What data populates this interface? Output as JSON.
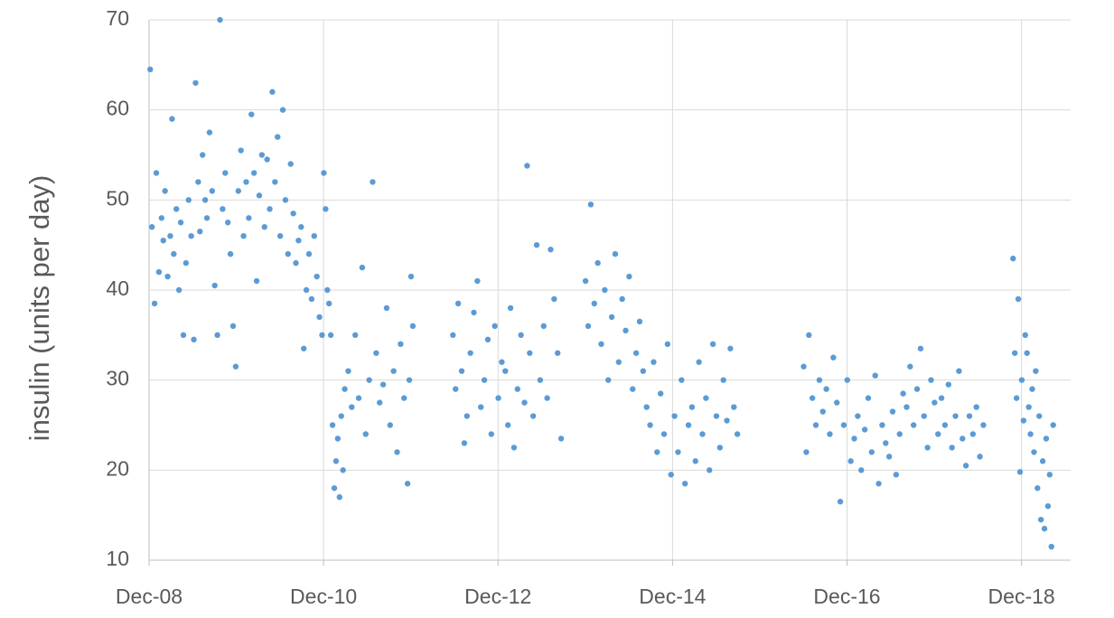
{
  "chart_data": {
    "type": "scatter",
    "y_label": "insulin (units per day)",
    "color": "#5b9bd5",
    "grid": true,
    "xlim": [
      2008.917,
      2019.48
    ],
    "xticks": [
      {
        "value": 2008.917,
        "label": "Dec-08"
      },
      {
        "value": 2010.917,
        "label": "Dec-10"
      },
      {
        "value": 2012.917,
        "label": "Dec-12"
      },
      {
        "value": 2014.917,
        "label": "Dec-14"
      },
      {
        "value": 2016.917,
        "label": "Dec-16"
      },
      {
        "value": 2018.917,
        "label": "Dec-18"
      }
    ],
    "ylim": [
      10,
      70
    ],
    "yticks": [
      10,
      20,
      30,
      40,
      50,
      60,
      70
    ],
    "x": [
      2008.93,
      2008.95,
      2008.98,
      2009.0,
      2009.03,
      2009.06,
      2009.08,
      2009.1,
      2009.13,
      2009.16,
      2009.18,
      2009.2,
      2009.23,
      2009.26,
      2009.28,
      2009.31,
      2009.34,
      2009.37,
      2009.4,
      2009.43,
      2009.45,
      2009.48,
      2009.5,
      2009.53,
      2009.56,
      2009.58,
      2009.61,
      2009.64,
      2009.67,
      2009.7,
      2009.73,
      2009.76,
      2009.79,
      2009.82,
      2009.85,
      2009.88,
      2009.91,
      2009.94,
      2009.97,
      2010.0,
      2010.03,
      2010.06,
      2010.09,
      2010.12,
      2010.15,
      2010.18,
      2010.21,
      2010.24,
      2010.27,
      2010.3,
      2010.33,
      2010.36,
      2010.39,
      2010.42,
      2010.45,
      2010.48,
      2010.51,
      2010.54,
      2010.57,
      2010.6,
      2010.63,
      2010.66,
      2010.69,
      2010.72,
      2010.75,
      2010.78,
      2010.81,
      2010.84,
      2010.87,
      2010.9,
      2010.92,
      2010.94,
      2010.96,
      2010.98,
      2011.0,
      2011.02,
      2011.04,
      2011.06,
      2011.08,
      2011.1,
      2011.12,
      2011.14,
      2011.16,
      2011.2,
      2011.24,
      2011.28,
      2011.32,
      2011.36,
      2011.4,
      2011.44,
      2011.48,
      2011.52,
      2011.56,
      2011.6,
      2011.64,
      2011.68,
      2011.72,
      2011.76,
      2011.8,
      2011.84,
      2011.88,
      2011.9,
      2011.92,
      2011.94,
      2012.4,
      2012.43,
      2012.46,
      2012.5,
      2012.53,
      2012.56,
      2012.6,
      2012.64,
      2012.68,
      2012.72,
      2012.76,
      2012.8,
      2012.84,
      2012.88,
      2012.92,
      2012.96,
      2013.0,
      2013.03,
      2013.06,
      2013.1,
      2013.14,
      2013.18,
      2013.22,
      2013.25,
      2013.28,
      2013.32,
      2013.36,
      2013.4,
      2013.44,
      2013.48,
      2013.52,
      2013.56,
      2013.6,
      2013.64,
      2013.92,
      2013.95,
      2013.98,
      2014.02,
      2014.06,
      2014.1,
      2014.14,
      2014.18,
      2014.22,
      2014.26,
      2014.3,
      2014.34,
      2014.38,
      2014.42,
      2014.46,
      2014.5,
      2014.54,
      2014.58,
      2014.62,
      2014.66,
      2014.7,
      2014.74,
      2014.78,
      2014.82,
      2014.86,
      2014.9,
      2014.94,
      2014.98,
      2015.02,
      2015.06,
      2015.1,
      2015.14,
      2015.18,
      2015.22,
      2015.26,
      2015.3,
      2015.34,
      2015.38,
      2015.42,
      2015.46,
      2015.5,
      2015.54,
      2015.58,
      2015.62,
      2015.66,
      2016.42,
      2016.45,
      2016.48,
      2016.52,
      2016.56,
      2016.6,
      2016.64,
      2016.68,
      2016.72,
      2016.76,
      2016.8,
      2016.84,
      2016.88,
      2016.92,
      2016.96,
      2017.0,
      2017.04,
      2017.08,
      2017.12,
      2017.16,
      2017.2,
      2017.24,
      2017.28,
      2017.32,
      2017.36,
      2017.4,
      2017.44,
      2017.48,
      2017.52,
      2017.56,
      2017.6,
      2017.64,
      2017.68,
      2017.72,
      2017.76,
      2017.8,
      2017.84,
      2017.88,
      2017.92,
      2017.96,
      2018.0,
      2018.04,
      2018.08,
      2018.12,
      2018.16,
      2018.2,
      2018.24,
      2018.28,
      2018.32,
      2018.36,
      2018.4,
      2018.44,
      2018.48,
      2018.82,
      2018.84,
      2018.86,
      2018.88,
      2018.9,
      2018.92,
      2018.94,
      2018.96,
      2018.98,
      2019.0,
      2019.02,
      2019.04,
      2019.06,
      2019.08,
      2019.1,
      2019.12,
      2019.14,
      2019.16,
      2019.18,
      2019.2,
      2019.22,
      2019.24,
      2019.26,
      2019.28
    ],
    "values": [
      64.5,
      47,
      38.5,
      53,
      42,
      48,
      45.5,
      51,
      41.5,
      46,
      59,
      44,
      49,
      40,
      47.5,
      35,
      43,
      50,
      46,
      34.5,
      63,
      52,
      46.5,
      55,
      50,
      48,
      57.5,
      51,
      40.5,
      35,
      70,
      49,
      53,
      47.5,
      44,
      36,
      31.5,
      51,
      55.5,
      46,
      52,
      48,
      59.5,
      53,
      41,
      50.5,
      55,
      47,
      54.5,
      49,
      62,
      52,
      57,
      46,
      60,
      50,
      44,
      54,
      48.5,
      43,
      45.5,
      47,
      33.5,
      40,
      44,
      39,
      46,
      41.5,
      37,
      35,
      53,
      49,
      40,
      38.5,
      35,
      25,
      18,
      21,
      23.5,
      17,
      26,
      20,
      29,
      31,
      27,
      35,
      28,
      42.5,
      24,
      30,
      52,
      33,
      27.5,
      29.5,
      38,
      25,
      31,
      22,
      34,
      28,
      18.5,
      30,
      41.5,
      36,
      35,
      29,
      38.5,
      31,
      23,
      26,
      33,
      37.5,
      41,
      27,
      30,
      34.5,
      24,
      36,
      28,
      32,
      31,
      25,
      38,
      22.5,
      29,
      35,
      27.5,
      53.8,
      33,
      26,
      45,
      30,
      36,
      28,
      44.5,
      39,
      33,
      23.5,
      41,
      36,
      49.5,
      38.5,
      43,
      34,
      40,
      30,
      37,
      44,
      32,
      39,
      35.5,
      41.5,
      29,
      33,
      36.5,
      31,
      27,
      25,
      32,
      22,
      28.5,
      24,
      34,
      19.5,
      26,
      22,
      30,
      18.5,
      25,
      27,
      21,
      32,
      24,
      28,
      20,
      34,
      26,
      22.5,
      30,
      25.5,
      33.5,
      27,
      24,
      31.5,
      22,
      35,
      28,
      25,
      30,
      26.5,
      29,
      24,
      32.5,
      27.5,
      16.5,
      25,
      30,
      21,
      23.5,
      26,
      20,
      24.5,
      28,
      22,
      30.5,
      18.5,
      25,
      23,
      21.5,
      26.5,
      19.5,
      24,
      28.5,
      27,
      31.5,
      25,
      29,
      33.5,
      26,
      22.5,
      30,
      27.5,
      24,
      28,
      25,
      29.5,
      22.5,
      26,
      31,
      23.5,
      20.5,
      26,
      24,
      27,
      21.5,
      25,
      43.5,
      33,
      28,
      39,
      19.8,
      30,
      25.5,
      35,
      33,
      27,
      24,
      29,
      22,
      31,
      18,
      26,
      14.5,
      21,
      13.5,
      23.5,
      16,
      19.5,
      11.5,
      25
    ]
  }
}
